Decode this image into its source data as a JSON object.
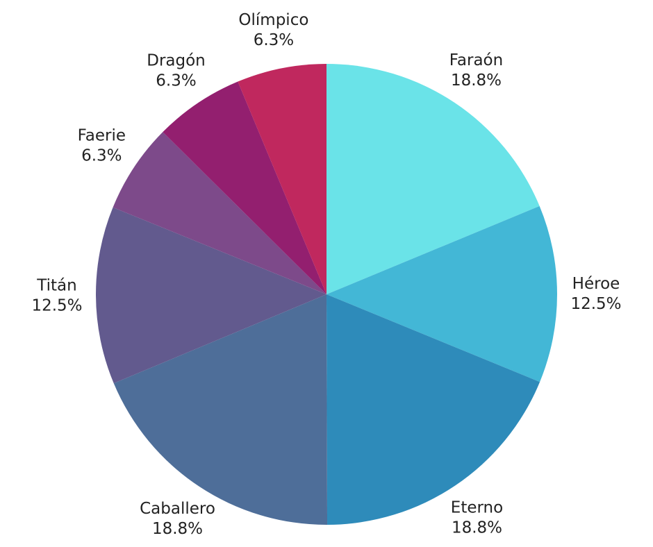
{
  "chart_data": {
    "type": "pie",
    "categories": [
      "Faraón",
      "Héroe",
      "Eterno",
      "Caballero",
      "Titán",
      "Faerie",
      "Dragón",
      "Olímpico"
    ],
    "values": [
      18.8,
      12.5,
      18.8,
      18.8,
      12.5,
      6.3,
      6.3,
      6.3
    ],
    "value_labels": [
      "18.8%",
      "12.5%",
      "18.8%",
      "18.8%",
      "12.5%",
      "6.3%",
      "6.3%",
      "6.3%"
    ],
    "colors": [
      "#6ae3e8",
      "#43b7d6",
      "#2e8bba",
      "#4e6e99",
      "#625a8e",
      "#7d4a8a",
      "#931f6f",
      "#c0285e"
    ]
  }
}
